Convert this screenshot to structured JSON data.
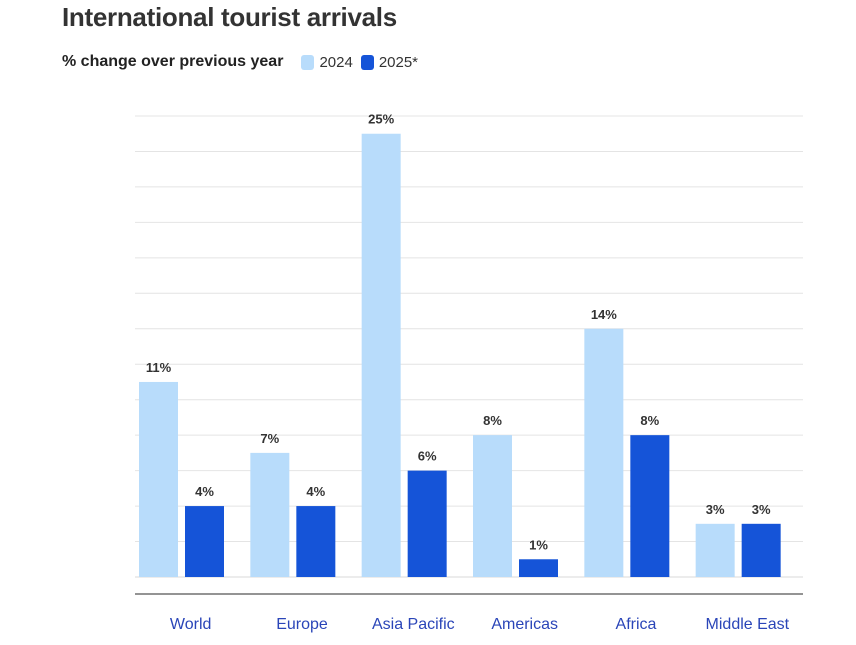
{
  "chart_data": {
    "type": "bar",
    "title": "International tourist arrivals",
    "subtitle": "% change over previous year",
    "categories": [
      "World",
      "Europe",
      "Asia Pacific",
      "Americas",
      "Africa",
      "Middle East"
    ],
    "series": [
      {
        "name": "2024",
        "values": [
          11,
          7,
          25,
          8,
          14,
          3
        ],
        "labels": [
          "11%",
          "7%",
          "25%",
          "8%",
          "14%",
          "3%"
        ],
        "color": "#b8dcfb"
      },
      {
        "name": "2025*",
        "values": [
          4,
          4,
          6,
          1,
          8,
          3
        ],
        "labels": [
          "4%",
          "4%",
          "6%",
          "1%",
          "8%",
          "3%"
        ],
        "color": "#1554d8"
      }
    ],
    "ylim": [
      0,
      26
    ],
    "grid": true,
    "legend_position": "top-left",
    "xlabel": "",
    "ylabel": ""
  }
}
